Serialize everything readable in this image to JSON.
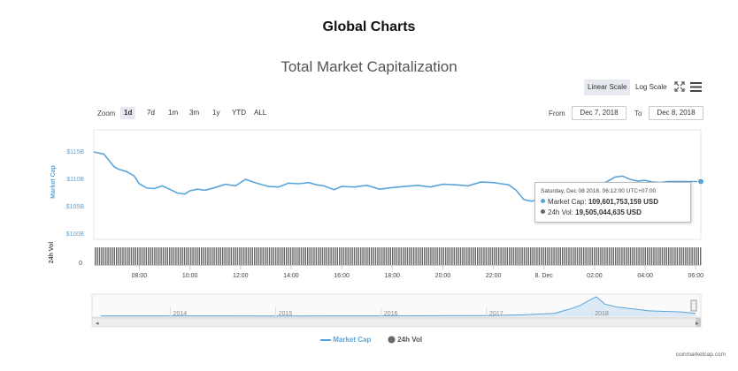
{
  "header": {
    "page_title": "Global Charts"
  },
  "chart": {
    "title": "Total Market Capitalization"
  },
  "toolbar": {
    "linear_scale": "Linear Scale",
    "log_scale": "Log Scale",
    "fullscreen_icon": "expand-icon",
    "menu_icon": "hamburger-menu-icon"
  },
  "zoom": {
    "label": "Zoom",
    "options": [
      "1d",
      "7d",
      "1m",
      "3m",
      "1y",
      "YTD",
      "ALL"
    ],
    "selected": "1d"
  },
  "date_range": {
    "from_label": "From",
    "from_value": "Dec 7, 2018",
    "to_label": "To",
    "to_value": "Dec 8, 2018"
  },
  "tooltip": {
    "header": "Saturday, Dec 08 2018, 06:12:00 UTC+07:00",
    "market_cap_label": "Market Cap:",
    "market_cap_value": "109,601,753,159 USD",
    "volume_label": "24h Vol:",
    "volume_value": "19,505,044,635 USD"
  },
  "legend": {
    "market_cap": "Market Cap",
    "volume": "24h Vol"
  },
  "credit": "coinmarketcap.com",
  "colors": {
    "market_cap": "#5ba4d9",
    "volume": "#666666",
    "navigator_fill": "#dbeaf6"
  },
  "chart_data": {
    "type": "line",
    "title": "Total Market Capitalization",
    "ylabel": "Market Cap",
    "ylabel2": "24h Vol",
    "y_tick_labels": [
      "$100B",
      "$105B",
      "$110B",
      "$115B"
    ],
    "y2_tick_labels": [
      "0"
    ],
    "x_tick_labels": [
      "08:00",
      "10:00",
      "12:00",
      "14:00",
      "16:00",
      "18:00",
      "20:00",
      "22:00",
      "8. Dec",
      "02:00",
      "04:00",
      "06:00"
    ],
    "ylim": [
      100,
      115
    ],
    "x_range_hours": [
      6.2,
      30.2
    ],
    "series": [
      {
        "name": "Market Cap",
        "x_hours": [
          6.2,
          6.6,
          7.0,
          7.2,
          7.5,
          7.8,
          8.0,
          8.3,
          8.6,
          8.9,
          9.2,
          9.5,
          9.8,
          10.0,
          10.3,
          10.6,
          11.0,
          11.4,
          11.8,
          12.2,
          12.5,
          12.8,
          13.1,
          13.5,
          13.9,
          14.3,
          14.7,
          15.0,
          15.3,
          15.7,
          16.0,
          16.5,
          17.0,
          17.5,
          18.0,
          18.5,
          19.0,
          19.5,
          20.0,
          20.5,
          21.0,
          21.5,
          22.0,
          22.3,
          22.6,
          22.9,
          23.2,
          23.5,
          23.7,
          24.0,
          24.3,
          24.6,
          24.9,
          25.2,
          25.5,
          25.8,
          26.0,
          26.2,
          26.5,
          26.8,
          27.1,
          27.4,
          27.7,
          28.0,
          28.3,
          28.6,
          28.9,
          29.2,
          29.5,
          29.8,
          30.0,
          30.2
        ],
        "values": [
          115.0,
          114.6,
          112.3,
          111.8,
          111.4,
          110.6,
          109.2,
          108.4,
          108.3,
          108.8,
          108.2,
          107.5,
          107.3,
          107.9,
          108.2,
          108.0,
          108.5,
          109.1,
          108.8,
          110.0,
          109.5,
          109.1,
          108.7,
          108.6,
          109.3,
          109.2,
          109.4,
          109.0,
          108.8,
          108.1,
          108.7,
          108.6,
          108.9,
          108.2,
          108.5,
          108.7,
          108.9,
          108.6,
          109.1,
          109.0,
          108.8,
          109.5,
          109.4,
          109.2,
          109.0,
          108.0,
          106.3,
          106.0,
          106.2,
          106.9,
          106.5,
          106.8,
          107.3,
          107.1,
          107.6,
          108.3,
          108.8,
          109.0,
          109.6,
          110.4,
          110.6,
          110.0,
          109.7,
          109.8,
          109.5,
          109.4,
          109.6,
          109.6,
          109.6,
          109.6,
          109.6,
          109.6
        ]
      },
      {
        "name": "24h Vol",
        "type": "column",
        "approx_value": 19.5
      }
    ],
    "tooltip_point": {
      "x_hours": 30.2,
      "market_cap_usd": 109601753159,
      "volume_usd": 19505044635
    },
    "navigator": {
      "x_labels": [
        "2014",
        "2015",
        "2016",
        "2017",
        "2018"
      ],
      "x_years": [
        2013.3,
        2014,
        2015,
        2016,
        2017,
        2017.3,
        2017.6,
        2017.75,
        2017.85,
        2017.95,
        2018.0,
        2018.08,
        2018.2,
        2018.35,
        2018.5,
        2018.65,
        2018.8,
        2018.94
      ],
      "values": [
        1.5,
        1.6,
        1.2,
        1.5,
        3,
        6,
        12,
        30,
        45,
        70,
        80,
        50,
        38,
        30,
        22,
        20,
        18,
        12
      ]
    }
  }
}
